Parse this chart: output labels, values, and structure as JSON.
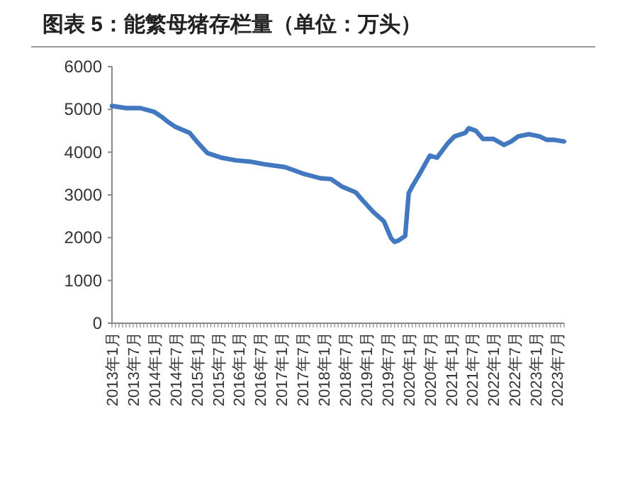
{
  "chart_data": {
    "type": "line",
    "title": "图表 5：能繁母猪存栏量（单位：万头）",
    "x": [
      "2013-01",
      "2013-05",
      "2013-09",
      "2014-01",
      "2014-03",
      "2014-05",
      "2014-07",
      "2014-11",
      "2015-01",
      "2015-04",
      "2015-08",
      "2015-12",
      "2016-04",
      "2016-08",
      "2017-02",
      "2017-07",
      "2017-12",
      "2018-03",
      "2018-06",
      "2018-10",
      "2018-12",
      "2019-03",
      "2019-06",
      "2019-08",
      "2019-09",
      "2019-10",
      "2019-12",
      "2020-01",
      "2020-02",
      "2020-04",
      "2020-07",
      "2020-09",
      "2020-12",
      "2021-02",
      "2021-05",
      "2021-06",
      "2021-08",
      "2021-10",
      "2022-01",
      "2022-04",
      "2022-06",
      "2022-08",
      "2022-11",
      "2023-02",
      "2023-04",
      "2023-06",
      "2023-09"
    ],
    "series": [
      {
        "color": "#4178c0",
        "values": [
          5080,
          5030,
          5030,
          4940,
          4830,
          4700,
          4590,
          4450,
          4250,
          3980,
          3870,
          3810,
          3780,
          3720,
          3650,
          3500,
          3390,
          3370,
          3200,
          3060,
          2870,
          2600,
          2380,
          1990,
          1900,
          1930,
          2040,
          3040,
          3200,
          3480,
          3920,
          3870,
          4200,
          4370,
          4450,
          4560,
          4500,
          4310,
          4310,
          4170,
          4250,
          4370,
          4420,
          4370,
          4290,
          4290,
          4250
        ]
      }
    ],
    "xlim": [
      "2013-01",
      "2023-09"
    ],
    "xticks": [
      {
        "value": "2013-01",
        "label": "2013年1月"
      },
      {
        "value": "2013-07",
        "label": "2013年7月"
      },
      {
        "value": "2014-01",
        "label": "2014年1月"
      },
      {
        "value": "2014-07",
        "label": "2014年7月"
      },
      {
        "value": "2015-01",
        "label": "2015年1月"
      },
      {
        "value": "2015-07",
        "label": "2015年7月"
      },
      {
        "value": "2016-01",
        "label": "2016年1月"
      },
      {
        "value": "2016-07",
        "label": "2016年7月"
      },
      {
        "value": "2017-01",
        "label": "2017年1月"
      },
      {
        "value": "2017-07",
        "label": "2017年7月"
      },
      {
        "value": "2018-01",
        "label": "2018年1月"
      },
      {
        "value": "2018-07",
        "label": "2018年7月"
      },
      {
        "value": "2019-01",
        "label": "2019年1月"
      },
      {
        "value": "2019-07",
        "label": "2019年7月"
      },
      {
        "value": "2020-01",
        "label": "2020年1月"
      },
      {
        "value": "2020-07",
        "label": "2020年7月"
      },
      {
        "value": "2021-01",
        "label": "2021年1月"
      },
      {
        "value": "2021-07",
        "label": "2021年7月"
      },
      {
        "value": "2022-01",
        "label": "2022年1月"
      },
      {
        "value": "2022-07",
        "label": "2022年7月"
      },
      {
        "value": "2023-01",
        "label": "2023年1月"
      },
      {
        "value": "2023-07",
        "label": "2023年7月"
      }
    ],
    "ylim": [
      0,
      6000
    ],
    "yticks": [
      0,
      1000,
      2000,
      3000,
      4000,
      5000,
      6000
    ],
    "grid": false,
    "marker": "none",
    "line_style": "solid"
  }
}
